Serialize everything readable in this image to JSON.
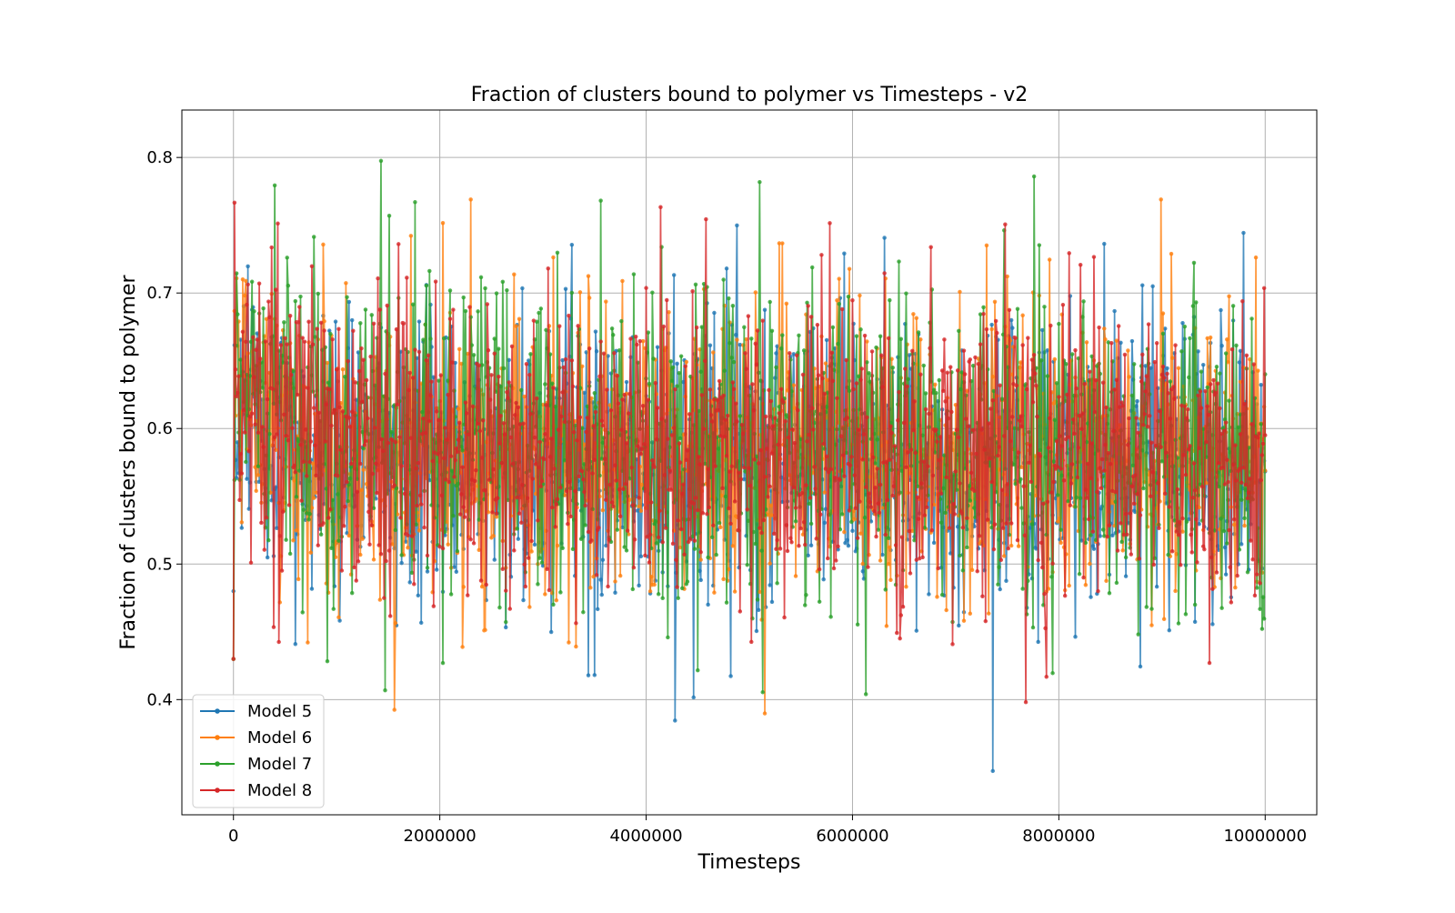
{
  "chart_data": {
    "type": "line",
    "title": "Fraction of clusters bound to polymer vs Timesteps - v2",
    "xlabel": "Timesteps",
    "ylabel": "Fraction of clusters bound to polymer",
    "xlim": [
      -500000,
      10500000
    ],
    "ylim": [
      0.315,
      0.835
    ],
    "xticks": [
      0,
      2000000,
      4000000,
      6000000,
      8000000,
      10000000
    ],
    "xtick_labels": [
      "0",
      "2000000",
      "4000000",
      "6000000",
      "8000000",
      "10000000"
    ],
    "yticks": [
      0.4,
      0.5,
      0.6,
      0.7,
      0.8
    ],
    "ytick_labels": [
      "0.4",
      "0.5",
      "0.6",
      "0.7",
      "0.8"
    ],
    "grid": true,
    "legend_position": "lower-left",
    "num_points_per_series": 1001,
    "x_start": 0,
    "x_end": 10000000,
    "series": [
      {
        "name": "Model 5",
        "color": "#1f77b4",
        "start_value": 0.48,
        "early_level": 0.625,
        "steady_mean": 0.575,
        "spread": 0.055,
        "min": 0.34,
        "max": 0.787
      },
      {
        "name": "Model 6",
        "color": "#ff7f0e",
        "start_value": 0.43,
        "early_level": 0.63,
        "steady_mean": 0.578,
        "spread": 0.055,
        "min": 0.373,
        "max": 0.769
      },
      {
        "name": "Model 7",
        "color": "#2ca02c",
        "start_value": 0.43,
        "early_level": 0.66,
        "steady_mean": 0.585,
        "spread": 0.057,
        "min": 0.397,
        "max": 0.803
      },
      {
        "name": "Model 8",
        "color": "#d62728",
        "start_value": 0.43,
        "early_level": 0.64,
        "steady_mean": 0.58,
        "spread": 0.054,
        "min": 0.387,
        "max": 0.812
      }
    ]
  }
}
